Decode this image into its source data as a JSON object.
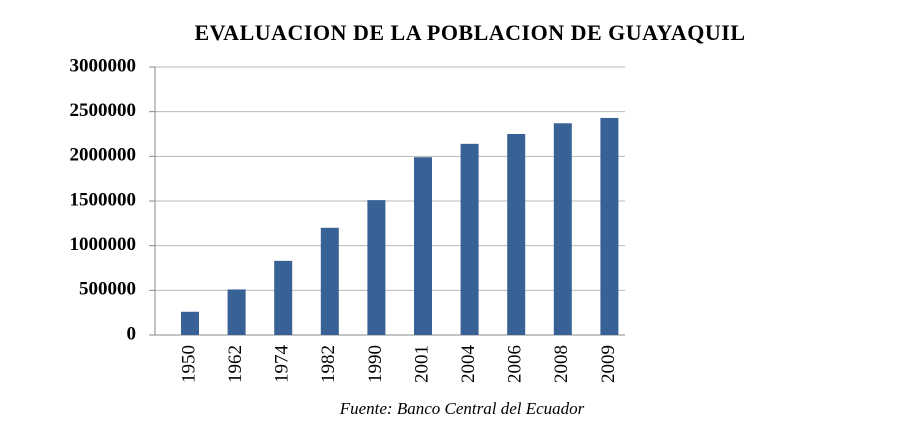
{
  "chart_data": {
    "type": "bar",
    "title": "EVALUACION DE LA POBLACION DE GUAYAQUIL",
    "categories": [
      "1950",
      "1962",
      "1974",
      "1982",
      "1990",
      "2001",
      "2004",
      "2006",
      "2008",
      "2009"
    ],
    "values": [
      260000,
      510000,
      830000,
      1200000,
      1510000,
      1990000,
      2140000,
      2250000,
      2370000,
      2430000
    ],
    "color": "#386196",
    "ylim": [
      0,
      3000000
    ],
    "yticks": [
      0,
      500000,
      1000000,
      1500000,
      2000000,
      2500000,
      3000000
    ],
    "grid": true,
    "source": "Fuente: Banco Central del Ecuador"
  }
}
